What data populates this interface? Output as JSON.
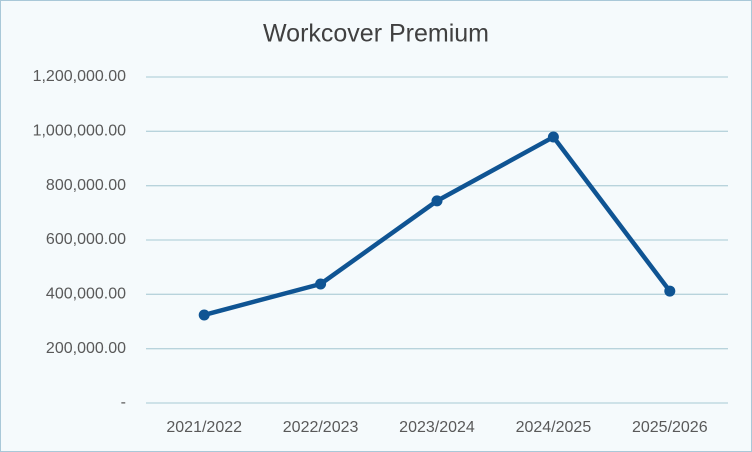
{
  "chart_data": {
    "type": "line",
    "title": "Workcover Premium",
    "categories": [
      "2021/2022",
      "2022/2023",
      "2023/2024",
      "2024/2025",
      "2025/2026"
    ],
    "series": [
      {
        "name": "Workcover Premium",
        "color": "#0f5493",
        "values": [
          324000,
          438000,
          744000,
          979000,
          412000
        ]
      }
    ],
    "ylim": [
      0,
      1200000
    ],
    "yticks": [
      {
        "value": 0,
        "label": "-"
      },
      {
        "value": 200000,
        "label": "200,000.00"
      },
      {
        "value": 400000,
        "label": "400,000.00"
      },
      {
        "value": 600000,
        "label": "600,000.00"
      },
      {
        "value": 800000,
        "label": "800,000.00"
      },
      {
        "value": 1000000,
        "label": "1,000,000.00"
      },
      {
        "value": 1200000,
        "label": "1,200,000.00"
      }
    ],
    "grid": true
  }
}
